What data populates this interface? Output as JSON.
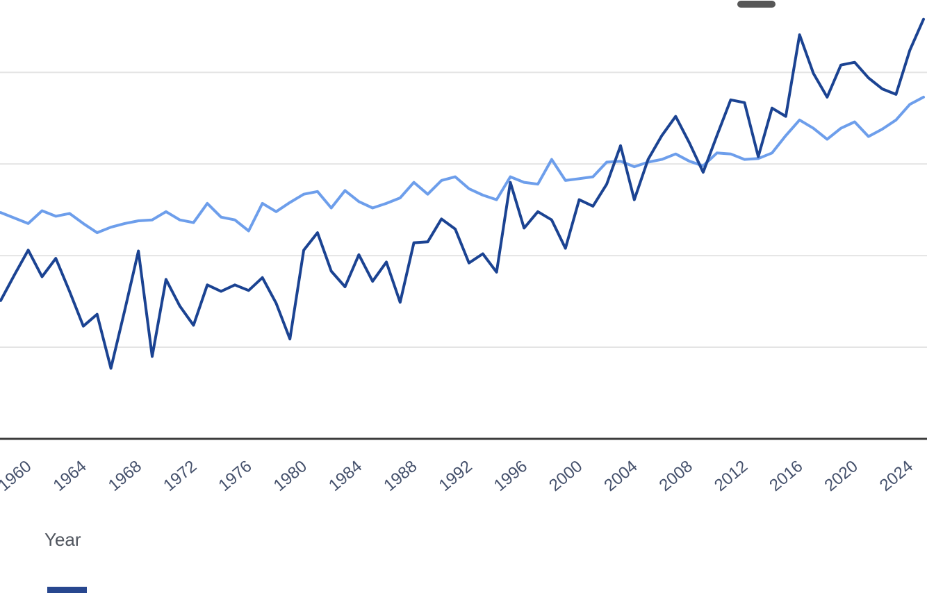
{
  "chart_data": {
    "type": "line",
    "title": "",
    "xlabel": "Year",
    "ylabel": "",
    "x": [
      1958,
      1959,
      1960,
      1961,
      1962,
      1963,
      1964,
      1965,
      1966,
      1967,
      1968,
      1969,
      1970,
      1971,
      1972,
      1973,
      1974,
      1975,
      1976,
      1977,
      1978,
      1979,
      1980,
      1981,
      1982,
      1983,
      1984,
      1985,
      1986,
      1987,
      1988,
      1989,
      1990,
      1991,
      1992,
      1993,
      1994,
      1995,
      1996,
      1997,
      1998,
      1999,
      2000,
      2001,
      2002,
      2003,
      2004,
      2005,
      2006,
      2007,
      2008,
      2009,
      2010,
      2011,
      2012,
      2013,
      2014,
      2015,
      2016,
      2017,
      2018,
      2019,
      2020,
      2021,
      2022,
      2023,
      2024,
      2025
    ],
    "x_tick_labels": [
      "1960",
      "1964",
      "1968",
      "1972",
      "1976",
      "1980",
      "1984",
      "1988",
      "1992",
      "1996",
      "2000",
      "2004",
      "2008",
      "2012",
      "2016",
      "2020",
      "2024"
    ],
    "x_tick_years": [
      1960,
      1964,
      1968,
      1972,
      1976,
      1980,
      1984,
      1988,
      1992,
      1996,
      2000,
      2004,
      2008,
      2012,
      2016,
      2020,
      2024
    ],
    "series": [
      {
        "name": "dark-blue-series",
        "color": "#1b4392",
        "values": [
          1.51,
          1.79,
          2.06,
          1.77,
          1.97,
          1.61,
          1.23,
          1.36,
          0.77,
          1.4,
          2.05,
          0.9,
          1.74,
          1.45,
          1.24,
          1.68,
          1.61,
          1.68,
          1.62,
          1.76,
          1.48,
          1.09,
          2.06,
          2.25,
          1.83,
          1.66,
          2.01,
          1.72,
          1.93,
          1.49,
          2.14,
          2.15,
          2.4,
          2.29,
          1.92,
          2.02,
          1.82,
          2.8,
          2.3,
          2.48,
          2.39,
          2.08,
          2.61,
          2.54,
          2.78,
          3.2,
          2.61,
          3.05,
          3.31,
          3.52,
          3.23,
          2.91,
          3.31,
          3.7,
          3.67,
          3.08,
          3.61,
          3.52,
          4.41,
          3.99,
          3.73,
          4.08,
          4.11,
          3.94,
          3.82,
          3.76,
          4.24,
          4.58
        ]
      },
      {
        "name": "light-blue-series",
        "color": "#6d9eeb",
        "values": [
          2.47,
          2.41,
          2.35,
          2.49,
          2.43,
          2.46,
          2.35,
          2.25,
          2.31,
          2.35,
          2.38,
          2.39,
          2.48,
          2.39,
          2.36,
          2.57,
          2.42,
          2.39,
          2.27,
          2.57,
          2.48,
          2.58,
          2.67,
          2.7,
          2.52,
          2.71,
          2.59,
          2.52,
          2.57,
          2.63,
          2.8,
          2.67,
          2.82,
          2.86,
          2.73,
          2.66,
          2.61,
          2.86,
          2.8,
          2.78,
          3.05,
          2.82,
          2.84,
          2.86,
          3.02,
          3.03,
          2.97,
          3.02,
          3.05,
          3.11,
          3.03,
          2.98,
          3.12,
          3.11,
          3.05,
          3.06,
          3.12,
          3.31,
          3.48,
          3.39,
          3.27,
          3.39,
          3.46,
          3.3,
          3.38,
          3.48,
          3.65,
          3.73
        ]
      }
    ],
    "xlim": [
      1957.95,
      2025.25
    ],
    "ylim": [
      0,
      4.79
    ],
    "gridline_values": [
      1,
      2,
      3,
      4
    ],
    "y_axis_labels_visible": false,
    "grid": "horizontal",
    "legend_position": "top-right-cropped"
  },
  "cropped_elements": {
    "legend_swatch_color": "#575757",
    "bottom_bar_color": "#28478f"
  }
}
